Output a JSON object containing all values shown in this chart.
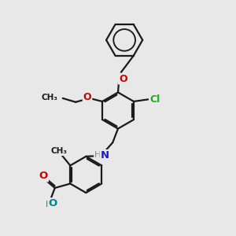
{
  "bg_color": "#e8e8e8",
  "bond_color": "#1a1a1a",
  "bond_width": 1.6,
  "atom_colors": {
    "O_benzyloxy": "#cc0000",
    "O_ethoxy": "#cc0000",
    "O_carbonyl": "#cc0000",
    "O_hydroxyl": "#008888",
    "N": "#1a1acc",
    "Cl": "#22aa22",
    "C": "#1a1a1a"
  },
  "xlim": [
    0,
    10
  ],
  "ylim": [
    0,
    11
  ]
}
